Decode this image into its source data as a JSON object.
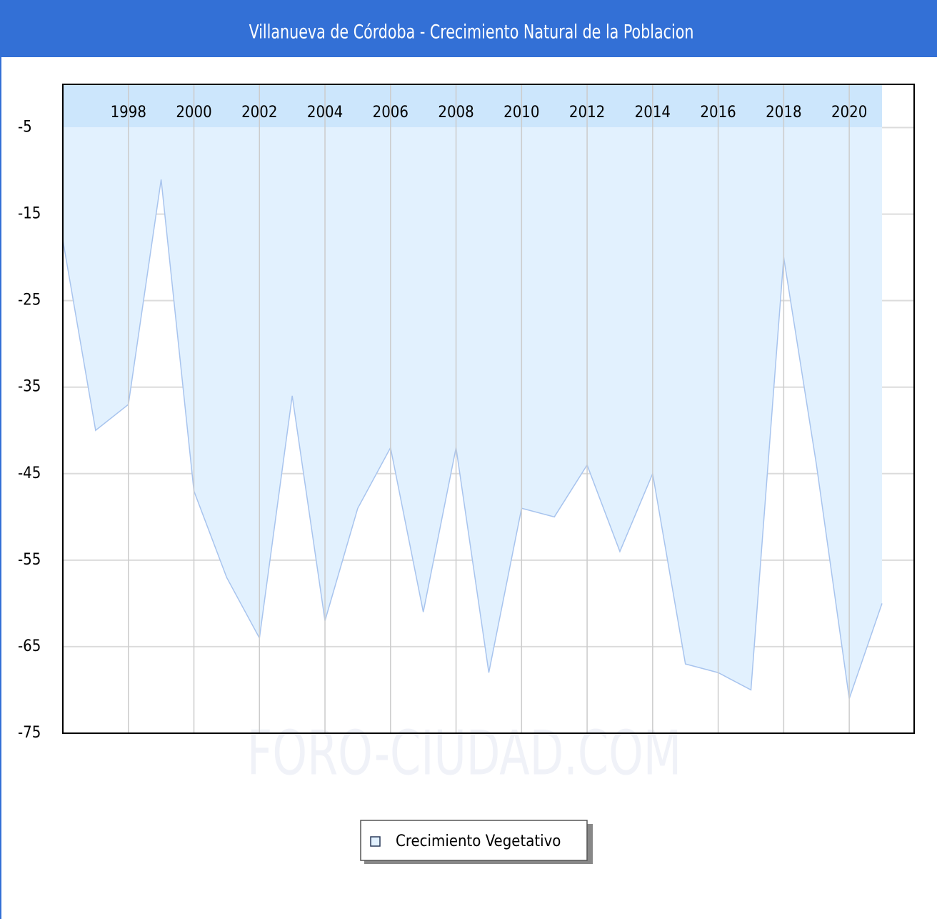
{
  "chart_data": {
    "type": "area",
    "title": "Villanueva de Córdoba - Crecimiento Natural de la Poblacion",
    "watermark": "FORO-CIUDAD.COM",
    "x": [
      1996,
      1997,
      1998,
      1999,
      2000,
      2001,
      2002,
      2003,
      2004,
      2005,
      2006,
      2007,
      2008,
      2009,
      2010,
      2011,
      2012,
      2013,
      2014,
      2015,
      2016,
      2017,
      2018,
      2019,
      2020,
      2021
    ],
    "series": [
      {
        "name": "Crecimiento Vegetativo",
        "color": "#a8c4ee",
        "fill": "#e2f1fe",
        "values": [
          -18,
          -40,
          -37,
          -11,
          -47,
          -57,
          -64,
          -36,
          -62,
          -49,
          -42,
          -61,
          -42,
          -68,
          -49,
          -50,
          -44,
          -54,
          -45,
          -67,
          -68,
          -70,
          -20,
          -44,
          -71,
          -60
        ]
      }
    ],
    "xlim": [
      1996,
      2021
    ],
    "xticks": [
      1998,
      2000,
      2002,
      2004,
      2006,
      2008,
      2010,
      2012,
      2014,
      2016,
      2018,
      2020
    ],
    "ylim": [
      -75,
      0
    ],
    "yticks": [
      -5,
      -15,
      -25,
      -35,
      -45,
      -55,
      -65,
      -75
    ],
    "grid": true,
    "legend": "bottom"
  }
}
